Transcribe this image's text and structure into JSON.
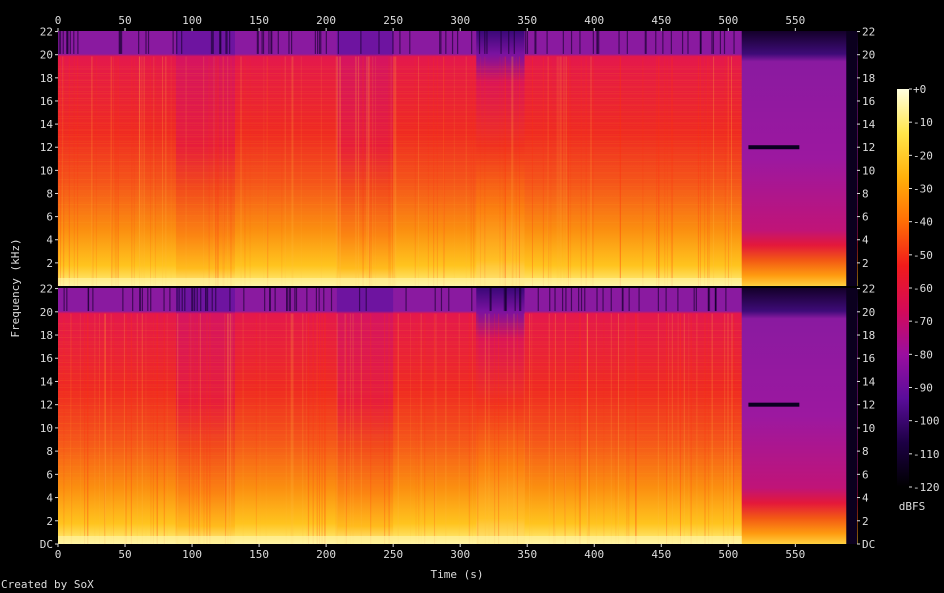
{
  "chart_data": {
    "type": "heatmap",
    "xlabel": "Time (s)",
    "ylabel": "Frequency (kHz)",
    "x_ticks": [
      0,
      50,
      100,
      150,
      200,
      250,
      300,
      350,
      400,
      450,
      500,
      550
    ],
    "x_range": [
      0,
      596
    ],
    "y_ticks_top": [
      "22",
      "20",
      "18",
      "16",
      "14",
      "12",
      "10",
      "8",
      "6",
      "4",
      "2"
    ],
    "y_ticks_bottom": [
      "22",
      "20",
      "18",
      "16",
      "14",
      "12",
      "10",
      "8",
      "6",
      "4",
      "2",
      "DC"
    ],
    "y_range_khz": [
      0,
      22.05
    ],
    "colorbar": {
      "label": "dBFS",
      "ticks": [
        "+0",
        "-10",
        "-20",
        "-30",
        "-40",
        "-50",
        "-60",
        "-70",
        "-80",
        "-90",
        "-100",
        "-110",
        "-120"
      ],
      "range": [
        -120,
        0
      ]
    },
    "channels": 2,
    "lowpass_cutoff_khz": 20,
    "colormap": [
      "#000000",
      "#1c0044",
      "#5a0d9a",
      "#9a0ea0",
      "#d40a58",
      "#f11b1b",
      "#ff6e05",
      "#ffb00a",
      "#ffe64a",
      "#ffffe0"
    ]
  },
  "credit": "Created by SoX"
}
